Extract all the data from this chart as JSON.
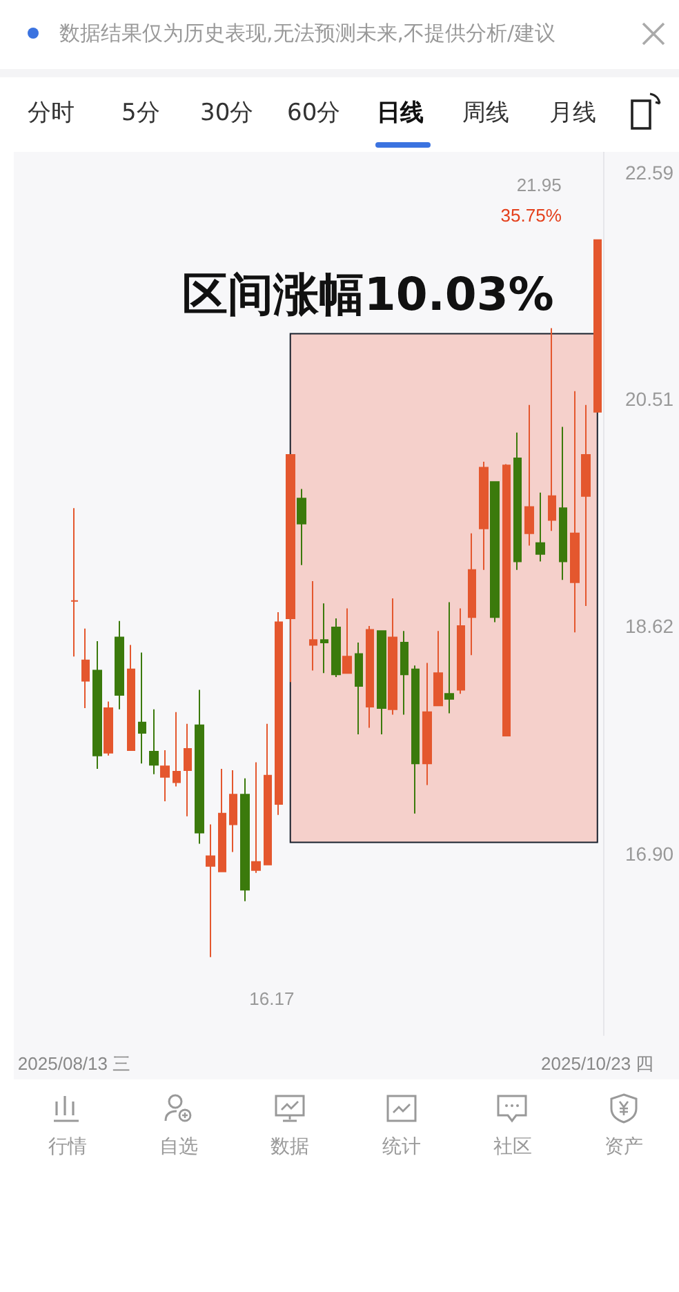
{
  "chart_data": {
    "type": "candlestick",
    "annotations": [
      "数据结果仅为历史表现,无法预测未来,不提供分析/建议",
      "分时",
      "5分",
      "30分",
      "60分",
      "日线",
      "周线",
      "月线",
      "行情",
      "自选",
      "数据",
      "统计",
      "社区",
      "资产",
      "21.95",
      "35.75%",
      "16.17"
    ],
    "categories": [
      "2025/08/13 三",
      null,
      null,
      null,
      null,
      null,
      null,
      null,
      null,
      null,
      null,
      null,
      null,
      null,
      null,
      null,
      null,
      null,
      null,
      null,
      null,
      null,
      null,
      null,
      null,
      null,
      null,
      null,
      null,
      null,
      null,
      null,
      null,
      null,
      null,
      null,
      null,
      null,
      null,
      null,
      null,
      null,
      null,
      null,
      null,
      null,
      "2025/10/23 四"
    ],
    "colors": [
      "#e4572e",
      "#e4572e",
      "#3b7a0c",
      "#e4572e",
      "#3b7a0c",
      "#e4572e",
      "#3b7a0c",
      "#3b7a0c",
      "#e4572e",
      "#e4572e",
      "#e4572e",
      "#3b7a0c",
      "#e4572e",
      "#e4572e",
      "#e4572e",
      "#3b7a0c",
      "#e4572e",
      "#e4572e",
      "#e4572e",
      "#e4572e",
      "#3b7a0c",
      "#e4572e",
      "#3b7a0c",
      "#3b7a0c",
      "#e4572e",
      "#3b7a0c",
      "#e4572e",
      "#3b7a0c",
      "#e4572e",
      "#3b7a0c",
      "#3b7a0c",
      "#e4572e",
      "#e4572e",
      "#3b7a0c",
      "#e4572e",
      "#e4572e",
      "#e4572e",
      "#3b7a0c",
      "#e4572e",
      "#3b7a0c",
      "#e4572e",
      "#3b7a0c",
      "#e4572e",
      "#3b7a0c",
      "#e4572e",
      "#e4572e",
      "#e4572e"
    ],
    "ohlc": [
      [
        18.82,
        19.58,
        18.38,
        18.82
      ],
      [
        18.19,
        18.6,
        17.98,
        18.35
      ],
      [
        18.27,
        18.5,
        17.52,
        17.62
      ],
      [
        17.64,
        18.03,
        17.62,
        17.98
      ],
      [
        18.53,
        18.66,
        17.97,
        18.08
      ],
      [
        17.66,
        18.47,
        17.66,
        18.28
      ],
      [
        17.87,
        18.41,
        17.56,
        17.79
      ],
      [
        17.65,
        17.97,
        17.48,
        17.55
      ],
      [
        17.46,
        17.66,
        17.28,
        17.54
      ],
      [
        17.42,
        17.95,
        17.39,
        17.5
      ],
      [
        17.51,
        17.86,
        17.17,
        17.67
      ],
      [
        17.85,
        18.12,
        16.97,
        17.05
      ],
      [
        16.81,
        17.11,
        16.17,
        16.88
      ],
      [
        16.77,
        17.52,
        16.77,
        17.19
      ],
      [
        17.11,
        17.51,
        16.91,
        17.33
      ],
      [
        17.33,
        17.45,
        16.56,
        16.64
      ],
      [
        16.78,
        17.57,
        16.76,
        16.84
      ],
      [
        16.82,
        17.86,
        16.82,
        17.47
      ],
      [
        17.26,
        18.73,
        17.18,
        18.65
      ],
      [
        18.68,
        20.03,
        18.18,
        20.03
      ],
      [
        19.66,
        19.74,
        19.11,
        19.45
      ],
      [
        18.47,
        18.98,
        18.27,
        18.51
      ],
      [
        18.51,
        18.8,
        18.25,
        18.49
      ],
      [
        18.61,
        18.68,
        18.22,
        18.24
      ],
      [
        18.25,
        18.76,
        18.25,
        18.38
      ],
      [
        18.4,
        18.49,
        17.78,
        18.15
      ],
      [
        17.99,
        18.62,
        17.83,
        18.59
      ],
      [
        18.58,
        18.58,
        17.78,
        17.98
      ],
      [
        17.97,
        18.84,
        17.93,
        18.53
      ],
      [
        18.49,
        18.58,
        17.93,
        18.24
      ],
      [
        18.28,
        18.31,
        17.19,
        17.56
      ],
      [
        17.56,
        18.33,
        17.4,
        17.95
      ],
      [
        18.0,
        18.58,
        18.0,
        18.25
      ],
      [
        18.09,
        18.81,
        17.94,
        18.05
      ],
      [
        18.12,
        18.76,
        18.09,
        18.62
      ],
      [
        18.69,
        19.37,
        18.39,
        19.07
      ],
      [
        19.41,
        19.97,
        19.07,
        19.92
      ],
      [
        19.8,
        19.8,
        18.65,
        18.69
      ],
      [
        17.77,
        19.95,
        17.77,
        19.94
      ],
      [
        20.0,
        20.22,
        19.07,
        19.14
      ],
      [
        19.37,
        20.46,
        19.27,
        19.59
      ],
      [
        19.29,
        19.71,
        19.14,
        19.2
      ],
      [
        19.48,
        21.14,
        19.39,
        19.68
      ],
      [
        19.58,
        20.27,
        18.99,
        19.14
      ],
      [
        18.97,
        20.58,
        18.57,
        19.37
      ],
      [
        19.68,
        20.46,
        18.78,
        20.03
      ],
      [
        20.4,
        21.95,
        20.4,
        21.95
      ]
    ],
    "ylim": [
      15.64,
      22.79
    ],
    "yticks": [
      {
        "value": 16.9,
        "label": "16.90"
      },
      {
        "value": 18.62,
        "label": "18.62"
      },
      {
        "value": 20.51,
        "label": "20.51"
      },
      {
        "value": 22.59,
        "label": "22.59"
      }
    ],
    "log": true,
    "bands": [
      {
        "axis": "y",
        "from": 16.98,
        "to": 21.09,
        "label": "区间涨幅10.03%",
        "color": "#f5d0cb"
      }
    ]
  }
}
